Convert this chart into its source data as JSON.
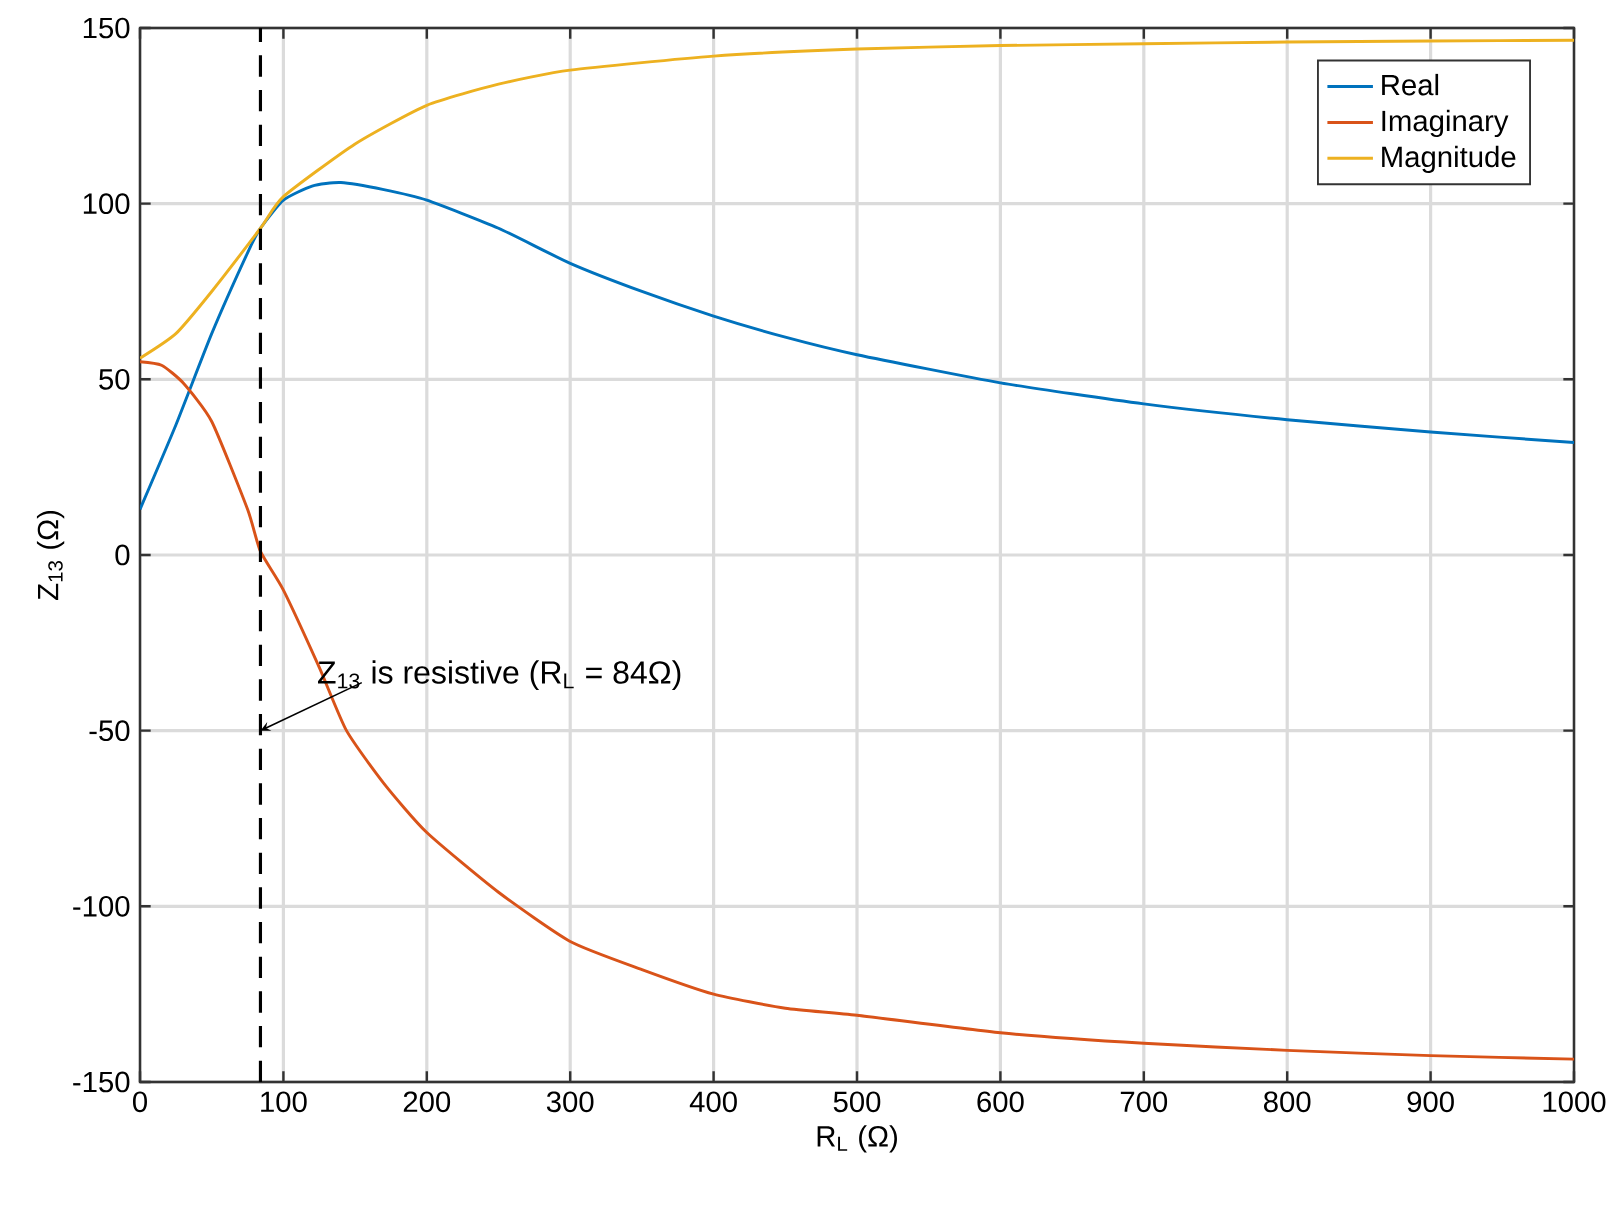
{
  "chart_data": {
    "type": "line",
    "xlabel": "R$_{L}$ (Ω)",
    "ylabel": "Z$_{13}$ (Ω)",
    "xlim": [
      0,
      1000
    ],
    "ylim": [
      -150,
      150
    ],
    "xticks": [
      0,
      100,
      200,
      300,
      400,
      500,
      600,
      700,
      800,
      900,
      1000
    ],
    "yticks": [
      -150,
      -100,
      -50,
      0,
      50,
      100,
      150
    ],
    "grid": true,
    "legend": "top right",
    "marker": "none",
    "line_style": "solid",
    "series": [
      {
        "name": "Real",
        "color": "#0072bd",
        "x": [
          0,
          25,
          50,
          75,
          84,
          100,
          120,
          140,
          170,
          200,
          250,
          300,
          350,
          400,
          450,
          500,
          600,
          700,
          800,
          900,
          1000
        ],
        "values": [
          13,
          37,
          63,
          86,
          93,
          101,
          105,
          106,
          104,
          101,
          93,
          83,
          75,
          68,
          62,
          57,
          49,
          43,
          38.5,
          35,
          32
        ]
      },
      {
        "name": "Imaginary",
        "color": "#d95319",
        "x": [
          0,
          15,
          30,
          50,
          75,
          84,
          100,
          125,
          144,
          170,
          200,
          250,
          300,
          350,
          400,
          450,
          500,
          600,
          700,
          800,
          900,
          1000
        ],
        "values": [
          55,
          54,
          49,
          38,
          13,
          1,
          -10,
          -32,
          -50,
          -65,
          -79,
          -96,
          -110,
          -118,
          -125,
          -129,
          -131,
          -136,
          -139,
          -141,
          -142.5,
          -143.5
        ]
      },
      {
        "name": "Magnitude",
        "color": "#edb120",
        "x": [
          0,
          25,
          50,
          84,
          100,
          150,
          200,
          250,
          300,
          400,
          500,
          600,
          700,
          800,
          900,
          1000
        ],
        "values": [
          56,
          63,
          75,
          93,
          102,
          117,
          128,
          134,
          138,
          142,
          144,
          145,
          145.5,
          146,
          146.3,
          146.5
        ]
      }
    ],
    "ref_lines": [
      {
        "axis": "x",
        "value": 84,
        "color": "#000000",
        "line_style": "dashed"
      }
    ],
    "annotations": [
      {
        "text": "Z$_{13}$ is resistive (R$_{L}$ = 84Ω)",
        "x": 84,
        "y": -50
      }
    ]
  }
}
